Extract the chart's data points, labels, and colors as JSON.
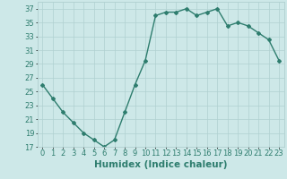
{
  "x": [
    0,
    1,
    2,
    3,
    4,
    5,
    6,
    7,
    8,
    9,
    10,
    11,
    12,
    13,
    14,
    15,
    16,
    17,
    18,
    19,
    20,
    21,
    22,
    23
  ],
  "y": [
    26,
    24,
    22,
    20.5,
    19,
    18,
    17,
    18,
    22,
    26,
    29.5,
    36,
    36.5,
    36.5,
    37,
    36,
    36.5,
    37,
    34.5,
    35,
    34.5,
    33.5,
    32.5,
    29.5
  ],
  "line_color": "#2e7d6e",
  "marker": "D",
  "marker_size": 2.0,
  "background_color": "#cde8e8",
  "grid_color": "#b0d0d0",
  "xlabel": "Humidex (Indice chaleur)",
  "xlabel_fontsize": 7.5,
  "ylim": [
    17,
    38
  ],
  "xlim": [
    -0.5,
    23.5
  ],
  "yticks": [
    17,
    19,
    21,
    23,
    25,
    27,
    29,
    31,
    33,
    35,
    37
  ],
  "xticks": [
    0,
    1,
    2,
    3,
    4,
    5,
    6,
    7,
    8,
    9,
    10,
    11,
    12,
    13,
    14,
    15,
    16,
    17,
    18,
    19,
    20,
    21,
    22,
    23
  ],
  "tick_fontsize": 6.0,
  "line_width": 1.0
}
